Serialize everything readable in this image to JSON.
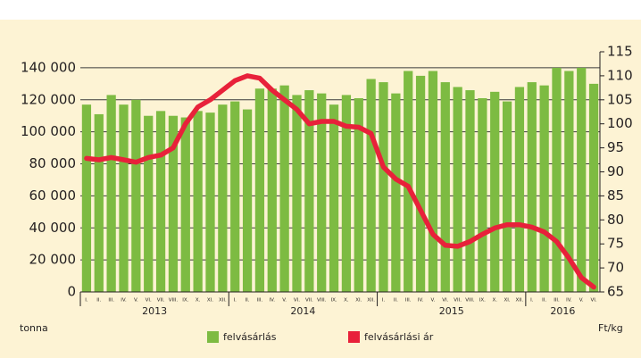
{
  "chart_data": {
    "type": "bar+line",
    "year_groups": [
      {
        "label": "2013",
        "months": [
          "I.",
          "II.",
          "III.",
          "IV.",
          "V.",
          "VI.",
          "VII.",
          "VIII.",
          "IX.",
          "X.",
          "XI.",
          "XII."
        ]
      },
      {
        "label": "2014",
        "months": [
          "I.",
          "II.",
          "III.",
          "IV.",
          "V.",
          "VI.",
          "VII.",
          "VIII.",
          "IX.",
          "X.",
          "XI.",
          "XII."
        ]
      },
      {
        "label": "2015",
        "months": [
          "I.",
          "II.",
          "III.",
          "IV.",
          "V.",
          "VI.",
          "VII.",
          "VIII.",
          "IX.",
          "X.",
          "XI.",
          "XII."
        ]
      },
      {
        "label": "2016",
        "months": [
          "I.",
          "II.",
          "III.",
          "IV.",
          "V.",
          "VI."
        ]
      }
    ],
    "series": [
      {
        "name": "felvásárlás",
        "color": "#7dbb42",
        "type": "bar",
        "values": [
          117000,
          111000,
          123000,
          117000,
          120000,
          110000,
          113000,
          110000,
          109000,
          113000,
          112000,
          117000,
          119000,
          114000,
          127000,
          127000,
          129000,
          123000,
          126000,
          124000,
          117000,
          123000,
          121000,
          133000,
          131000,
          124000,
          138000,
          135000,
          138000,
          131000,
          128000,
          126000,
          121000,
          125000,
          119000,
          128000,
          131000,
          129000,
          140000,
          138000,
          140000,
          130000
        ]
      },
      {
        "name": "felvásárlási ár",
        "color": "#e8213a",
        "type": "line",
        "axis": "y2",
        "values": [
          92.8,
          92.5,
          93,
          92.5,
          92,
          93,
          93.5,
          95,
          100,
          103.5,
          105,
          107,
          109,
          110,
          109.5,
          107,
          105,
          103,
          100,
          100.5,
          100.5,
          99.5,
          99.3,
          98,
          91,
          88.5,
          87,
          82,
          77,
          74.7,
          74.5,
          75.5,
          77,
          78.3,
          79,
          79,
          78.5,
          77.5,
          75.5,
          72,
          68,
          66
        ]
      }
    ],
    "ylabel": "tonna",
    "y2label": "Ft/kg",
    "ylim": [
      0,
      150000
    ],
    "yticks": [
      {
        "value": 0,
        "label": "0"
      },
      {
        "value": 20000,
        "label": "20 000"
      },
      {
        "value": 40000,
        "label": "40 000"
      },
      {
        "value": 60000,
        "label": "60 000"
      },
      {
        "value": 80000,
        "label": "80 000"
      },
      {
        "value": 100000,
        "label": "100 000"
      },
      {
        "value": 120000,
        "label": "120 000"
      },
      {
        "value": 140000,
        "label": "140 000"
      }
    ],
    "y2lim": [
      65,
      115
    ],
    "y2ticks": [
      65,
      70,
      75,
      80,
      85,
      90,
      95,
      100,
      105,
      110,
      115
    ],
    "grid": true
  }
}
